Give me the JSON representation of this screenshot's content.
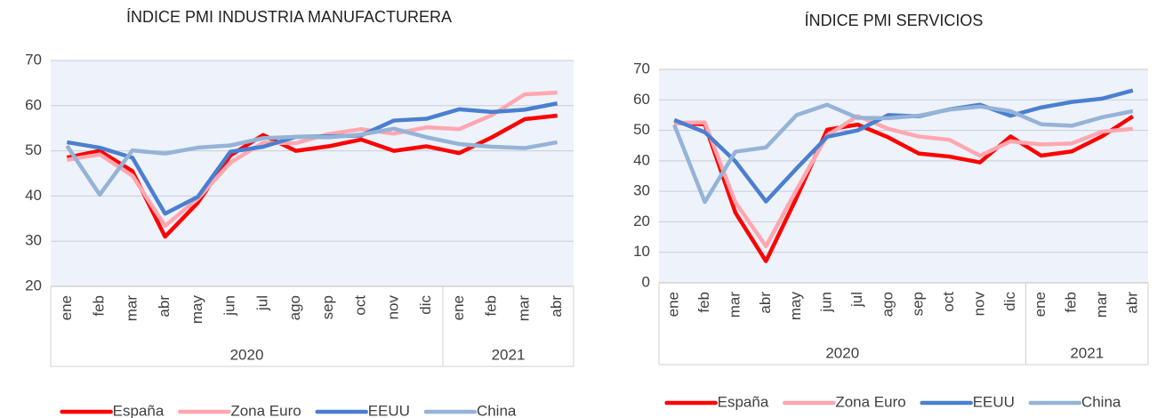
{
  "chart_data": [
    {
      "type": "line",
      "title": "ÍNDICE PMI INDUSTRIA MANUFACTURERA",
      "groups": [
        {
          "name": "2020",
          "categories": [
            "ene",
            "feb",
            "mar",
            "abr",
            "may",
            "jun",
            "jul",
            "ago",
            "sep",
            "oct",
            "nov",
            "dic"
          ]
        },
        {
          "name": "2021",
          "categories": [
            "ene",
            "feb",
            "mar",
            "abr"
          ]
        }
      ],
      "series": [
        {
          "name": "España",
          "color": "#ff0000",
          "values": [
            48.5,
            50,
            45.5,
            31,
            38.5,
            49,
            53.5,
            50,
            51,
            52.5,
            50,
            51,
            49.5,
            53,
            57,
            57.8
          ]
        },
        {
          "name": "Zona Euro",
          "color": "#ffa7b0",
          "values": [
            48,
            49.2,
            44.5,
            33.4,
            39.4,
            47.4,
            51.8,
            51.7,
            53.7,
            54.8,
            53.8,
            55.2,
            54.8,
            57.9,
            62.5,
            62.9
          ]
        },
        {
          "name": "EEUU",
          "color": "#4a7fd0",
          "values": [
            51.9,
            50.7,
            48.5,
            36.1,
            39.8,
            49.8,
            50.9,
            53.1,
            53.2,
            53.4,
            56.7,
            57.1,
            59.2,
            58.6,
            59.1,
            60.5
          ]
        },
        {
          "name": "China",
          "color": "#95b3d7",
          "values": [
            51.1,
            40.3,
            50.1,
            49.4,
            50.7,
            51.2,
            52.8,
            53.1,
            53,
            53.6,
            54.9,
            53,
            51.5,
            50.9,
            50.6,
            51.9
          ]
        }
      ],
      "ylim": [
        20,
        70
      ],
      "yticks": [
        20,
        30,
        40,
        50,
        60,
        70
      ],
      "grid": true,
      "legend": "bottom"
    },
    {
      "type": "line",
      "title": "ÍNDICE PMI SERVICIOS",
      "groups": [
        {
          "name": "2020",
          "categories": [
            "ene",
            "feb",
            "mar",
            "abr",
            "may",
            "jun",
            "jul",
            "ago",
            "sep",
            "oct",
            "nov",
            "dic"
          ]
        },
        {
          "name": "2021",
          "categories": [
            "ene",
            "feb",
            "mar",
            "abr"
          ]
        }
      ],
      "series": [
        {
          "name": "España",
          "color": "#ff0000",
          "values": [
            52.5,
            52,
            23,
            7.1,
            27.9,
            50.2,
            51.9,
            47.7,
            42.4,
            41.4,
            39.5,
            48,
            41.7,
            43.1,
            48.1,
            54.6
          ]
        },
        {
          "name": "Zona Euro",
          "color": "#ffa7b0",
          "values": [
            52.5,
            52.6,
            26.4,
            12,
            30.5,
            48.3,
            54.7,
            50.5,
            48,
            46.9,
            41.7,
            46.4,
            45.4,
            45.7,
            49.6,
            50.5
          ]
        },
        {
          "name": "EEUU",
          "color": "#4a7fd0",
          "values": [
            53.4,
            49.4,
            39.8,
            26.7,
            37.5,
            47.9,
            50,
            55,
            54.6,
            56.9,
            58.4,
            54.8,
            57.5,
            59.3,
            60.4,
            63.1
          ]
        },
        {
          "name": "China",
          "color": "#95b3d7",
          "values": [
            51.8,
            26.5,
            43,
            44.4,
            55,
            58.4,
            54.1,
            54,
            54.8,
            56.8,
            57.8,
            56.3,
            52,
            51.5,
            54.3,
            56.3
          ]
        }
      ],
      "ylim": [
        0,
        70
      ],
      "yticks": [
        0,
        10,
        20,
        30,
        40,
        50,
        60,
        70
      ],
      "grid": true,
      "legend": "bottom"
    }
  ]
}
